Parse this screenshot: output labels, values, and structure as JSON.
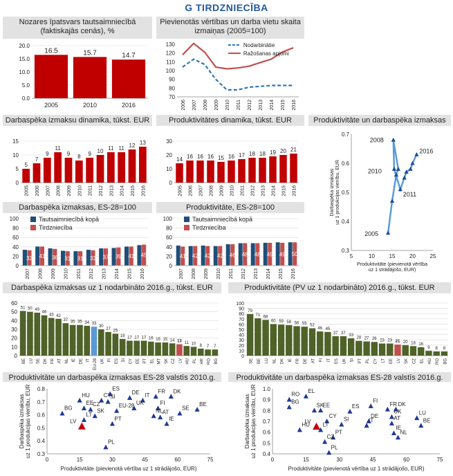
{
  "page_title": "G TIRDZNIECĪBA",
  "chart_data": [
    {
      "id": "c1",
      "type": "bar",
      "title": "Nozares īpatsvars tautsaimniecībā (faktiskajās cenās), %",
      "categories": [
        "2005",
        "2010",
        "2016"
      ],
      "values": [
        16.5,
        15.7,
        14.7
      ],
      "ylim": [
        0,
        20
      ],
      "yticks": [
        "0.0",
        "5.0",
        "10.0",
        "15.0",
        "20.0"
      ],
      "colors": {
        "bar": "#c00000"
      }
    },
    {
      "id": "c2",
      "type": "line",
      "title": "Pievienotās vērtības un darba vietu skaita izmaiņas (2005=100)",
      "categories": [
        "2006",
        "2007",
        "2008",
        "2009",
        "2010",
        "2011",
        "2012",
        "2013",
        "2014",
        "2015",
        "2016"
      ],
      "series": [
        {
          "name": "Nodarbinātie",
          "values": [
            104,
            113,
            107,
            90,
            78,
            78,
            81,
            82,
            83,
            83,
            83
          ],
          "color": "#2e75b6"
        },
        {
          "name": "Ražošanas apjomi",
          "values": [
            118,
            131,
            121,
            104,
            102,
            103,
            105,
            109,
            113,
            121,
            126
          ],
          "color": "#c0504d"
        }
      ],
      "ylim": [
        70,
        130
      ],
      "yticks": [
        "70",
        "80",
        "90",
        "100",
        "110",
        "120",
        "130"
      ]
    },
    {
      "id": "c3",
      "type": "bar",
      "title": "Darbaspēka izmaksu dinamika, tūkst. EUR",
      "categories": [
        "2005",
        "2006",
        "2007",
        "2008",
        "2009",
        "2010",
        "2011",
        "2012",
        "2013",
        "2014",
        "2015",
        "2016"
      ],
      "values": [
        5,
        7,
        9,
        11,
        9,
        8,
        9,
        10,
        11,
        11,
        12,
        13
      ],
      "ylim": [
        0,
        15
      ],
      "yticks": [
        "0",
        "5",
        "10",
        "15"
      ],
      "colors": {
        "bar": "#c00000"
      }
    },
    {
      "id": "c4",
      "type": "bar",
      "title": "Produktivitātes dinamika, tūkst. EUR",
      "categories": [
        "2005",
        "2006",
        "2007",
        "2008",
        "2009",
        "2010",
        "2011",
        "2012",
        "2013",
        "2014",
        "2015",
        "2016"
      ],
      "values": [
        14,
        16,
        16,
        16,
        15,
        16,
        17,
        18,
        18,
        19,
        20,
        21
      ],
      "ylim": [
        0,
        30
      ],
      "yticks": [
        "0",
        "10",
        "20",
        "30"
      ],
      "colors": {
        "bar": "#c00000"
      }
    },
    {
      "id": "c5",
      "type": "line",
      "title": "Produktivitāte un darbaspēka izmaksas",
      "x": [
        14,
        15,
        16,
        16.5,
        15.3,
        15.5,
        17,
        18,
        18.5,
        19.5,
        20,
        21
      ],
      "y": [
        0.36,
        0.47,
        0.56,
        0.58,
        0.68,
        0.58,
        0.51,
        0.55,
        0.57,
        0.58,
        0.6,
        0.63
      ],
      "point_labels": {
        "0": "2005",
        "4": "2008",
        "5": "2010",
        "6": "2011",
        "11": "2016"
      },
      "xlim": [
        5,
        25
      ],
      "ylim": [
        0.3,
        0.7
      ],
      "xticks": [
        "5",
        "10",
        "15",
        "20",
        "25"
      ],
      "yticks": [
        "0.3",
        "0.4",
        "0.5",
        "0.6",
        "0.7"
      ],
      "xlabel": "Produktivitāte (pievienotā vērtība uz 1 strādājošo, EUR)",
      "ylabel": "Darbaspēka izmaksas uz 1 produkcijas vienību, EUR",
      "colors": {
        "line": "#5b9bd5",
        "marker": "#1f4e9c"
      }
    },
    {
      "id": "c6",
      "type": "bar",
      "title": "Darbaspēka izmaksas, ES-28=100",
      "categories": [
        "2007",
        "2008",
        "2009",
        "2010",
        "2011",
        "2012",
        "2013",
        "2014",
        "2015",
        "2016"
      ],
      "series": [
        {
          "name": "Tautsaimniecībā kopā",
          "values": [
            34,
            41,
            37,
            32,
            31,
            34,
            37,
            38,
            41,
            44
          ],
          "color": "#1f4e79"
        },
        {
          "name": "Tirdzniecība",
          "values": [
            33,
            41,
            36,
            31,
            31,
            33,
            37,
            39,
            41,
            45
          ],
          "color": "#c0504d"
        }
      ],
      "ylim": [
        0,
        100
      ],
      "yticks": [
        "0",
        "20",
        "40",
        "60",
        "80",
        "100"
      ]
    },
    {
      "id": "c7",
      "type": "bar",
      "title": "Produktivitāte, ES-28=100",
      "categories": [
        "2007",
        "2008",
        "2009",
        "2010",
        "2011",
        "2012",
        "2013",
        "2014",
        "2015",
        "2016"
      ],
      "series": [
        {
          "name": "Tautsaimniecībā kopā",
          "values": [
            43,
            42,
            43,
            42,
            46,
            48,
            48,
            49,
            50,
            50
          ],
          "color": "#1f4e79"
        },
        {
          "name": "Tirdzniecība",
          "values": [
            41,
            42,
            42,
            42,
            46,
            48,
            48,
            49,
            49,
            50
          ],
          "color": "#c0504d"
        }
      ],
      "ylim": [
        0,
        100
      ],
      "yticks": [
        "0",
        "20",
        "40",
        "60",
        "80",
        "100"
      ]
    },
    {
      "id": "c8",
      "type": "bar",
      "title": "Darbaspēka izmaksas uz 1 nodarbināto 2016.g., tūkst. EUR",
      "categories": [
        "BE",
        "LU",
        "SE",
        "DK",
        "FR",
        "AT",
        "NL",
        "IE",
        "DE",
        "IT",
        "EU-28",
        "UK",
        "FI",
        "ES",
        "SI",
        "CY",
        "EE",
        "PT",
        "EL",
        "MT",
        "SK",
        "CZ",
        "LV",
        "HU",
        "PL",
        "HR",
        "RO",
        "BG"
      ],
      "values": [
        51,
        50,
        49,
        46,
        43,
        42,
        37,
        35,
        35,
        34,
        33,
        30,
        27,
        25,
        19,
        17,
        17,
        17,
        16,
        15,
        15,
        14,
        13,
        11,
        10,
        8,
        7,
        7
      ],
      "highlight": {
        "EU-28": "#5b9bd5",
        "LV": "#c0504d"
      },
      "ylim": [
        0,
        60
      ],
      "yticks": [
        "0",
        "10",
        "20",
        "30",
        "40",
        "50",
        "60"
      ],
      "colors": {
        "bar": "#4f6228"
      }
    },
    {
      "id": "c9",
      "type": "bar",
      "title": "Produktivitāte (PV uz 1 nodarbināto) 2016.g., tūkst. EUR",
      "categories": [
        "SE",
        "BE",
        "LU",
        "NL",
        "DK",
        "IE",
        "FR",
        "DE",
        "AT",
        "FI",
        "IT",
        "ES",
        "UK",
        "SI",
        "PT",
        "PL",
        "CY",
        "LT",
        "EE",
        "LV",
        "SK",
        "CZ",
        "EL",
        "HU",
        "RO",
        "BG"
      ],
      "values": [
        79,
        71,
        68,
        60,
        59,
        58,
        56,
        55,
        52,
        46,
        45,
        37,
        37,
        33,
        28,
        27,
        26,
        23,
        23,
        21,
        20,
        18,
        16,
        9,
        8,
        8
      ],
      "highlight": {
        "LV": "#c0504d"
      },
      "ylim": [
        0,
        100
      ],
      "yticks": [
        "0",
        "10",
        "20",
        "30",
        "40",
        "50",
        "60",
        "70",
        "80",
        "90",
        "100"
      ],
      "colors": {
        "bar": "#4f6228"
      }
    },
    {
      "id": "c10",
      "type": "scatter",
      "title": "Produktivitāte un darbaspēka izmaksas ES-28 valstīs 2010.g.",
      "points": [
        {
          "label": "HU",
          "x": 15,
          "y": 0.71
        },
        {
          "label": "BG",
          "x": 7,
          "y": 0.61
        },
        {
          "label": "EE",
          "x": 17,
          "y": 0.65
        },
        {
          "label": "CY",
          "x": 25,
          "y": 0.71
        },
        {
          "label": "ES",
          "x": 29,
          "y": 0.76
        },
        {
          "label": "SI",
          "x": 28,
          "y": 0.7
        },
        {
          "label": "DE",
          "x": 38,
          "y": 0.73
        },
        {
          "label": "IT",
          "x": 44,
          "y": 0.71
        },
        {
          "label": "FR",
          "x": 50,
          "y": 0.74
        },
        {
          "label": "DK",
          "x": 57,
          "y": 0.74
        },
        {
          "label": "CZ",
          "x": 20,
          "y": 0.64
        },
        {
          "label": "EU-28",
          "x": 32,
          "y": 0.63
        },
        {
          "label": "UK",
          "x": 40,
          "y": 0.65
        },
        {
          "label": "FI",
          "x": 51,
          "y": 0.65
        },
        {
          "label": "LT",
          "x": 17,
          "y": 0.56
        },
        {
          "label": "SK",
          "x": 22,
          "y": 0.59
        },
        {
          "label": "PT",
          "x": 30,
          "y": 0.53
        },
        {
          "label": "NL",
          "x": 49,
          "y": 0.59
        },
        {
          "label": "AT",
          "x": 52,
          "y": 0.58
        },
        {
          "label": "IE",
          "x": 55,
          "y": 0.53
        },
        {
          "label": "SE",
          "x": 61,
          "y": 0.61
        },
        {
          "label": "BE",
          "x": 69,
          "y": 0.64
        },
        {
          "label": "LV",
          "x": 16,
          "y": 0.51,
          "highlight": true
        },
        {
          "label": "PL",
          "x": 27,
          "y": 0.35
        }
      ],
      "xlim": [
        0,
        75
      ],
      "ylim": [
        0.3,
        0.8
      ],
      "xticks": [
        "0",
        "15",
        "30",
        "45",
        "60",
        "75"
      ],
      "yticks": [
        "0.3",
        "0.4",
        "0.5",
        "0.6",
        "0.7",
        "0.8"
      ],
      "xlabel": "Produktivitāte (pievienotā vērtība uz 1 strādājošo, EUR)",
      "ylabel": "Darbaspēka izmaksas uz 1 produkcijas vienību, EUR",
      "colors": {
        "marker": "#1f3a93",
        "highlight": "#c00000"
      }
    },
    {
      "id": "c11",
      "type": "scatter",
      "title": "Produktivitāte un darbaspēka izmaksas ES-28 valstīs 2016.g.",
      "points": [
        {
          "label": "RO",
          "x": 8,
          "y": 0.9
        },
        {
          "label": "EL",
          "x": 16,
          "y": 0.93
        },
        {
          "label": "BG",
          "x": 8,
          "y": 0.83
        },
        {
          "label": "SK",
          "x": 20,
          "y": 0.8
        },
        {
          "label": "EE",
          "x": 23,
          "y": 0.8
        },
        {
          "label": "ES",
          "x": 37,
          "y": 0.79
        },
        {
          "label": "FI",
          "x": 47,
          "y": 0.84
        },
        {
          "label": "FR",
          "x": 55,
          "y": 0.81
        },
        {
          "label": "DK",
          "x": 59,
          "y": 0.81
        },
        {
          "label": "LU",
          "x": 69,
          "y": 0.73
        },
        {
          "label": "CY",
          "x": 26,
          "y": 0.7
        },
        {
          "label": "SI",
          "x": 33,
          "y": 0.67
        },
        {
          "label": "DE",
          "x": 46,
          "y": 0.7
        },
        {
          "label": "IT",
          "x": 45,
          "y": 0.66
        },
        {
          "label": "UK",
          "x": 57,
          "y": 0.74
        },
        {
          "label": "AT",
          "x": 57,
          "y": 0.68
        },
        {
          "label": "BE",
          "x": 71,
          "y": 0.66
        },
        {
          "label": "HU",
          "x": 13,
          "y": 0.62
        },
        {
          "label": "LV",
          "x": 21,
          "y": 0.65,
          "highlight": true
        },
        {
          "label": "LT",
          "x": 23,
          "y": 0.62
        },
        {
          "label": "PT",
          "x": 29,
          "y": 0.55
        },
        {
          "label": "IE",
          "x": 58,
          "y": 0.59
        },
        {
          "label": "NL",
          "x": 60,
          "y": 0.55
        },
        {
          "label": "CZ",
          "x": 25,
          "y": 0.51
        },
        {
          "label": "PL",
          "x": 27,
          "y": 0.41
        }
      ],
      "xlim": [
        0,
        80
      ],
      "ylim": [
        0.4,
        1.0
      ],
      "xticks": [
        "0",
        "15",
        "30",
        "45",
        "60",
        "75"
      ],
      "yticks": [
        "0.4",
        "0.5",
        "0.6",
        "0.7",
        "0.8",
        "0.9",
        "1.0"
      ],
      "xlabel": "Produktivitāte (pievienotā vērtība uz 1 strādājošo, EUR)",
      "ylabel": "Darbaspēka izmaksas uz 1 produkcijas vienību, EUR",
      "colors": {
        "marker": "#1f3a93",
        "highlight": "#c00000"
      }
    }
  ]
}
